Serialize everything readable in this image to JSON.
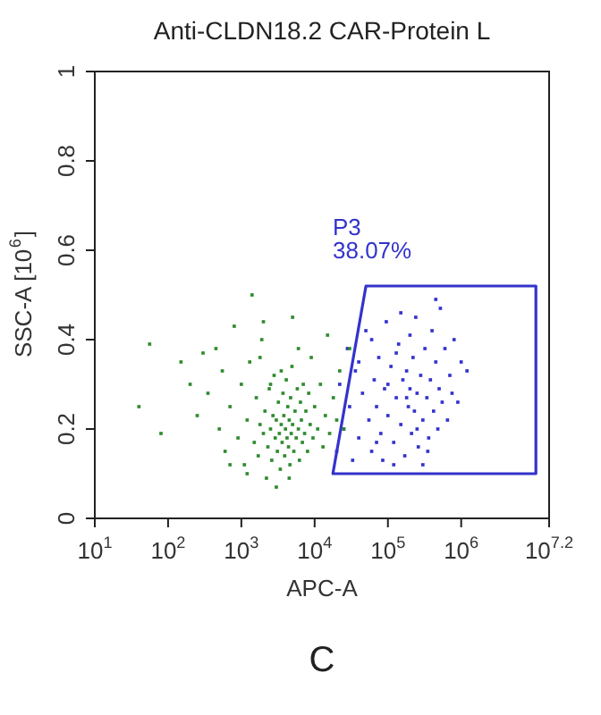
{
  "chart_data": {
    "type": "scatter",
    "title": "Anti-CLDN18.2 CAR-Protein L",
    "xlabel": "APC-A",
    "ylabel": "SSC-A [10$^{6}$]",
    "log": "x",
    "marker": "square",
    "legend": false,
    "xlim": [
      10,
      15848932
    ],
    "xticks": [
      {
        "value": 10,
        "label": "10$^{1}$"
      },
      {
        "value": 100,
        "label": "10$^{2}$"
      },
      {
        "value": 1000,
        "label": "10$^{3}$"
      },
      {
        "value": 10000,
        "label": "10$^{4}$"
      },
      {
        "value": 100000,
        "label": "10$^{5}$"
      },
      {
        "value": 1000000,
        "label": "10$^{6}$"
      },
      {
        "value": 15848932,
        "label": "10$^{7.2}$"
      }
    ],
    "ylim": [
      0,
      1
    ],
    "yticks": [
      0,
      0.2,
      0.4,
      0.6,
      0.8,
      1
    ],
    "annotations": [
      "P3",
      "38.07%",
      "C"
    ],
    "series": [
      {
        "color": "#2e8b2e",
        "x": [
          40,
          56,
          80,
          150,
          200,
          250,
          300,
          350,
          450,
          500,
          550,
          600,
          700,
          800,
          900,
          1000,
          1100,
          1200,
          1300,
          1400,
          1500,
          1600,
          1700,
          1800,
          1900,
          2000,
          2100,
          2200,
          2300,
          2400,
          2500,
          2600,
          2700,
          2800,
          2900,
          3000,
          3100,
          3200,
          3300,
          3400,
          3500,
          3600,
          3700,
          3800,
          3900,
          4000,
          4100,
          4200,
          4300,
          4400,
          4500,
          4600,
          4700,
          4800,
          4900,
          5000,
          5200,
          5400,
          5600,
          5800,
          6000,
          6200,
          6400,
          6600,
          6800,
          7000,
          7300,
          7600,
          8000,
          8300,
          8700,
          9000,
          9500,
          10000,
          11000,
          12000,
          13000,
          14000,
          15000,
          16000,
          18000,
          20000,
          22000,
          25000,
          30000,
          1200,
          2000,
          3000,
          700,
          5000,
          1800,
          2500,
          3500,
          4500,
          6000
        ],
        "values": [
          0.25,
          0.39,
          0.19,
          0.35,
          0.3,
          0.23,
          0.37,
          0.28,
          0.38,
          0.2,
          0.33,
          0.15,
          0.25,
          0.43,
          0.18,
          0.3,
          0.12,
          0.22,
          0.35,
          0.5,
          0.17,
          0.27,
          0.14,
          0.21,
          0.4,
          0.19,
          0.24,
          0.09,
          0.16,
          0.29,
          0.2,
          0.13,
          0.23,
          0.32,
          0.18,
          0.22,
          0.15,
          0.26,
          0.19,
          0.11,
          0.21,
          0.17,
          0.28,
          0.23,
          0.14,
          0.2,
          0.31,
          0.18,
          0.25,
          0.16,
          0.22,
          0.12,
          0.27,
          0.19,
          0.34,
          0.21,
          0.15,
          0.24,
          0.18,
          0.29,
          0.2,
          0.13,
          0.26,
          0.22,
          0.17,
          0.3,
          0.19,
          0.24,
          0.15,
          0.28,
          0.21,
          0.36,
          0.18,
          0.25,
          0.2,
          0.3,
          0.16,
          0.23,
          0.41,
          0.19,
          0.27,
          0.22,
          0.33,
          0.2,
          0.38,
          0.1,
          0.44,
          0.07,
          0.12,
          0.45,
          0.36,
          0.3,
          0.33,
          0.09,
          0.38
        ]
      },
      {
        "color": "#3333cc",
        "x": [
          20000,
          22000,
          25000,
          28000,
          30000,
          33000,
          36000,
          40000,
          45000,
          50000,
          55000,
          60000,
          65000,
          70000,
          75000,
          80000,
          85000,
          90000,
          95000,
          100000,
          110000,
          120000,
          130000,
          140000,
          150000,
          160000,
          170000,
          180000,
          190000,
          200000,
          210000,
          220000,
          230000,
          240000,
          250000,
          260000,
          280000,
          300000,
          320000,
          340000,
          360000,
          380000,
          400000,
          420000,
          450000,
          480000,
          500000,
          520000,
          550000,
          600000,
          650000,
          700000,
          750000,
          800000,
          900000,
          1000000,
          1200000,
          120000,
          60000,
          300000,
          450000,
          200000,
          150000,
          70000,
          130000,
          350000,
          250000,
          40000,
          180000,
          100000
        ],
        "values": [
          0.15,
          0.3,
          0.2,
          0.38,
          0.25,
          0.13,
          0.33,
          0.18,
          0.28,
          0.42,
          0.22,
          0.15,
          0.31,
          0.25,
          0.36,
          0.19,
          0.13,
          0.29,
          0.44,
          0.23,
          0.34,
          0.17,
          0.27,
          0.39,
          0.21,
          0.31,
          0.14,
          0.33,
          0.25,
          0.29,
          0.19,
          0.36,
          0.24,
          0.45,
          0.28,
          0.16,
          0.32,
          0.22,
          0.38,
          0.27,
          0.18,
          0.31,
          0.42,
          0.24,
          0.35,
          0.2,
          0.29,
          0.47,
          0.26,
          0.38,
          0.22,
          0.32,
          0.28,
          0.4,
          0.26,
          0.35,
          0.33,
          0.12,
          0.4,
          0.12,
          0.49,
          0.41,
          0.46,
          0.17,
          0.37,
          0.15,
          0.2,
          0.35,
          0.27,
          0.3
        ]
      }
    ]
  }
}
